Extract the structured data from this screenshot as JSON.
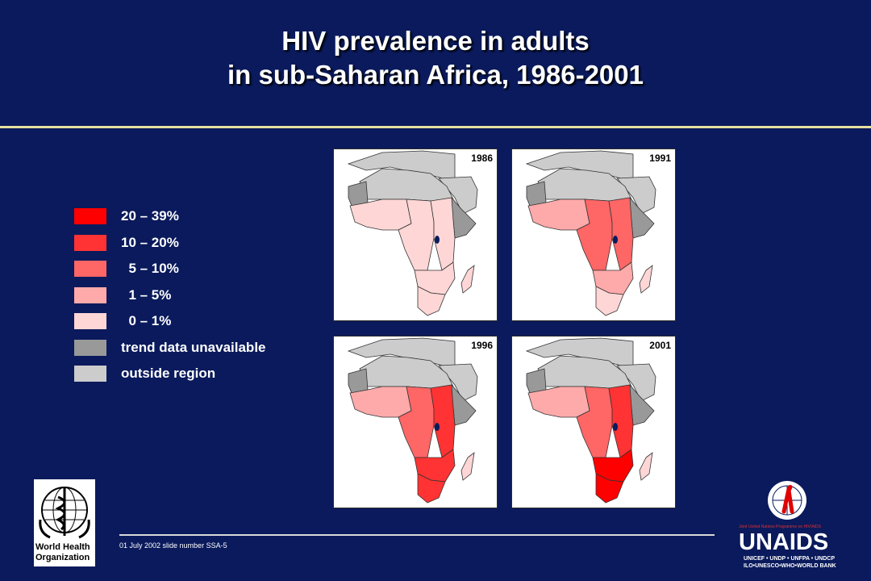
{
  "slide": {
    "title_line1": "HIV prevalence in adults",
    "title_line2": "in sub-Saharan Africa, 1986-2001",
    "footer": "01 July 2002 slide number SSA-5"
  },
  "legend": [
    {
      "label": "20 – 39%",
      "color": "#ff0000"
    },
    {
      "label": "10 – 20%",
      "color": "#ff3333"
    },
    {
      "label": "  5 – 10%",
      "color": "#ff6666"
    },
    {
      "label": "  1 – 5%",
      "color": "#ffaaaa"
    },
    {
      "label": "  0 – 1%",
      "color": "#ffd6d6"
    },
    {
      "label": "trend data unavailable",
      "color": "#999999"
    },
    {
      "label": "outside region",
      "color": "#cccccc"
    }
  ],
  "maps": [
    {
      "year": "1986",
      "colors": {
        "west": "#ffd6d6",
        "central": "#ffd6d6",
        "east": "#ffd6d6",
        "south": "#ffd6d6",
        "cape": "#ffd6d6",
        "horn": "#999999",
        "mauritania": "#999999",
        "madagascar": "#ffd6d6"
      }
    },
    {
      "year": "1991",
      "colors": {
        "west": "#ffaaaa",
        "central": "#ff6666",
        "east": "#ff6666",
        "south": "#ffaaaa",
        "cape": "#ffd6d6",
        "horn": "#999999",
        "mauritania": "#999999",
        "madagascar": "#ffd6d6"
      }
    },
    {
      "year": "1996",
      "colors": {
        "west": "#ffaaaa",
        "central": "#ff6666",
        "east": "#ff3333",
        "south": "#ff3333",
        "cape": "#ff3333",
        "horn": "#999999",
        "mauritania": "#999999",
        "madagascar": "#ffd6d6"
      }
    },
    {
      "year": "2001",
      "colors": {
        "west": "#ffaaaa",
        "central": "#ff6666",
        "east": "#ff3333",
        "south": "#ff0000",
        "cape": "#ff0000",
        "horn": "#999999",
        "mauritania": "#999999",
        "madagascar": "#ffd6d6"
      }
    }
  ],
  "who": {
    "name_line1": "World Health",
    "name_line2": "Organization"
  },
  "unaids": {
    "tagline": "Joint United Nations Programme on HIV/AIDS",
    "wordmark": "UNAIDS",
    "partners_line1": "UNICEF • UNDP • UNFPA • UNDCP",
    "partners_line2": "ILO•UNESCO•WHO•WORLD BANK"
  },
  "colors": {
    "background": "#0a1a5c",
    "rule": "#e8dfa0",
    "outside": "#cccccc",
    "water": "#ffffff"
  }
}
